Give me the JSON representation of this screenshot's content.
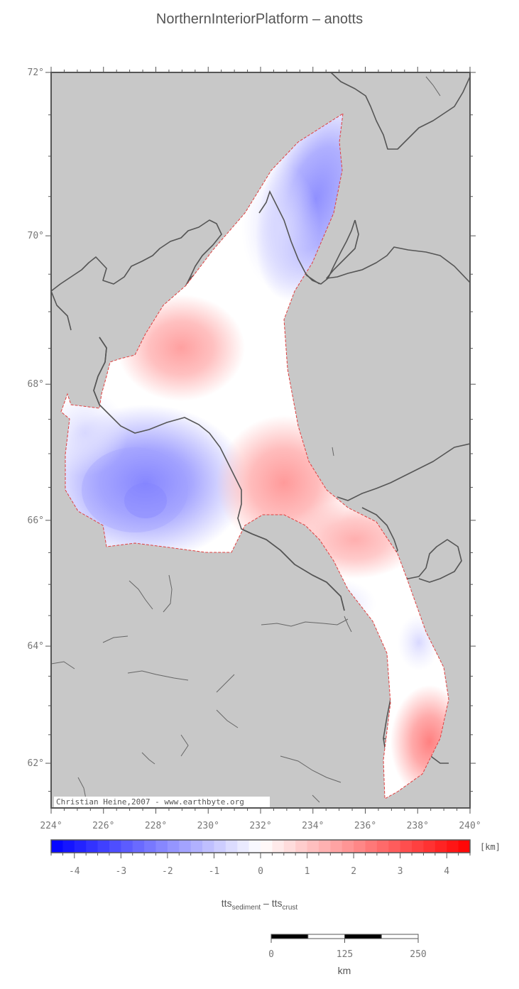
{
  "title": "NorthernInteriorPlatform – anotts",
  "credit": "Christian Heine,2007 - www.earthbyte.org",
  "map": {
    "lon_range": [
      224,
      240
    ],
    "lat_range": [
      61.2,
      72
    ],
    "lon_ticks": [
      "224°",
      "226°",
      "228°",
      "230°",
      "232°",
      "234°",
      "236°",
      "238°",
      "240°"
    ],
    "lat_ticks": [
      "72°",
      "70°",
      "68°",
      "66°",
      "64°",
      "62°"
    ],
    "colors": {
      "land": "#c8c8c8",
      "coastline": "#555555",
      "boundary": "#e04040",
      "negative": "#0000ff",
      "positive": "#ff0000"
    }
  },
  "colorbar": {
    "unit": "[km]",
    "range": [
      -4.5,
      4.5
    ],
    "ticks": [
      "-4",
      "-3",
      "-2",
      "-1",
      "0",
      "1",
      "2",
      "3",
      "4"
    ],
    "label_main1": "tts",
    "label_sub1": "sediment",
    "label_sep": " – tts",
    "label_sub2": "crust"
  },
  "scalebar": {
    "ticks": [
      "0",
      "125",
      "250"
    ],
    "unit": "km"
  }
}
